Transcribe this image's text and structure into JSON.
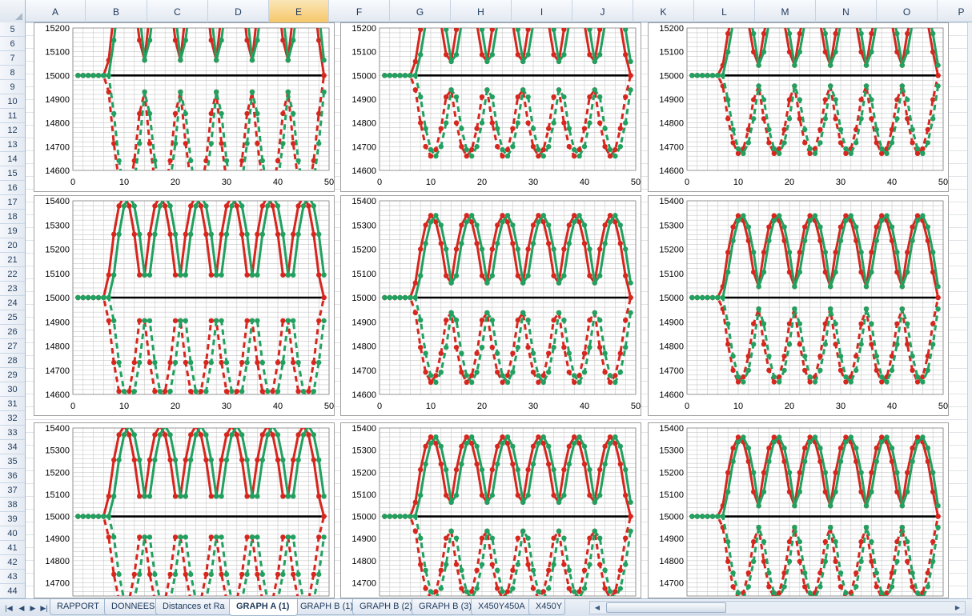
{
  "columns": [
    "A",
    "B",
    "C",
    "D",
    "E",
    "F",
    "G",
    "H",
    "I",
    "J",
    "K",
    "L",
    "M",
    "N",
    "O",
    "P"
  ],
  "selected_column": "E",
  "rows": [
    5,
    6,
    7,
    8,
    9,
    10,
    11,
    12,
    13,
    14,
    15,
    16,
    17,
    18,
    19,
    20,
    21,
    22,
    23,
    24,
    25,
    26,
    27,
    28,
    29,
    30,
    31,
    32,
    33,
    34,
    35,
    36,
    37,
    38,
    39,
    40,
    41,
    42,
    43,
    44
  ],
  "sheet_tabs": [
    "RAPPORT",
    "DONNEES",
    "Distances et Ra",
    "GRAPH A (1)",
    "GRAPH B (1)",
    "GRAPH B (2)",
    "GRAPH B (3)",
    "X450Y450A",
    "X450Y"
  ],
  "active_tab": "GRAPH A (1)",
  "colors": {
    "red": "#d7261e",
    "green": "#22a060",
    "baseline": "#000000",
    "grid": "#c8c8c8"
  },
  "chart_data": [
    {
      "type": "line",
      "xlim": [
        0,
        50
      ],
      "ylim": [
        14600,
        15200
      ],
      "y_ticks": [
        14600,
        14700,
        14800,
        14900,
        15000,
        15100,
        15200
      ],
      "x_ticks": [
        0,
        10,
        20,
        30,
        40,
        50
      ],
      "baseline": 15000,
      "minima": [
        14,
        28,
        42
      ],
      "amp_upper": 480,
      "amp_lower": 520,
      "offset_red": 0.3,
      "offset_green": -0.3
    },
    {
      "type": "line",
      "xlim": [
        0,
        50
      ],
      "ylim": [
        14600,
        15200
      ],
      "y_ticks": [
        14600,
        14700,
        14800,
        14900,
        15000,
        15100,
        15200
      ],
      "x_ticks": [
        0,
        10,
        20,
        30,
        40,
        50
      ],
      "baseline": 15000,
      "minima": [
        14,
        28,
        42
      ],
      "amp_upper": 330,
      "amp_lower": 340,
      "offset_red": 0.4,
      "offset_green": -0.4
    },
    {
      "type": "line",
      "xlim": [
        0,
        50
      ],
      "ylim": [
        14600,
        15200
      ],
      "y_ticks": [
        14600,
        14700,
        14800,
        14900,
        15000,
        15100,
        15200
      ],
      "x_ticks": [
        0,
        10,
        20,
        30,
        40,
        50
      ],
      "baseline": 15000,
      "minima": [
        14,
        28,
        42
      ],
      "amp_upper": 320,
      "amp_lower": 330,
      "offset_red": 0.3,
      "offset_green": -0.3
    },
    {
      "type": "line",
      "xlim": [
        0,
        50
      ],
      "ylim": [
        14600,
        15400
      ],
      "y_ticks": [
        14600,
        14700,
        14800,
        14900,
        15000,
        15100,
        15200,
        15300,
        15400
      ],
      "x_ticks": [
        0,
        10,
        20,
        30,
        40,
        50
      ],
      "baseline": 15000,
      "minima": [
        14,
        28,
        42
      ],
      "amp_upper": 420,
      "amp_lower": 430,
      "offset_red": 0.5,
      "offset_green": -0.5
    },
    {
      "type": "line",
      "xlim": [
        0,
        50
      ],
      "ylim": [
        14600,
        15400
      ],
      "y_ticks": [
        14600,
        14700,
        14800,
        14900,
        15000,
        15100,
        15200,
        15300,
        15400
      ],
      "x_ticks": [
        0,
        10,
        20,
        30,
        40,
        50
      ],
      "baseline": 15000,
      "minima": [
        14,
        28,
        42
      ],
      "amp_upper": 340,
      "amp_lower": 350,
      "offset_red": 0.4,
      "offset_green": -0.4
    },
    {
      "type": "line",
      "xlim": [
        0,
        50
      ],
      "ylim": [
        14600,
        15400
      ],
      "y_ticks": [
        14600,
        14700,
        14800,
        14900,
        15000,
        15100,
        15200,
        15300,
        15400
      ],
      "x_ticks": [
        0,
        10,
        20,
        30,
        40,
        50
      ],
      "baseline": 15000,
      "minima": [
        14,
        28,
        42
      ],
      "amp_upper": 340,
      "amp_lower": 350,
      "offset_red": 0.3,
      "offset_green": -0.3
    },
    {
      "type": "line",
      "xlim": [
        0,
        50
      ],
      "ylim": [
        14640,
        15400
      ],
      "y_ticks": [
        14700,
        14800,
        14900,
        15000,
        15100,
        15200,
        15300,
        15400
      ],
      "x_ticks": [],
      "baseline": 15000,
      "minima": [
        14,
        28,
        42
      ],
      "amp_upper": 410,
      "amp_lower": 420,
      "offset_red": 0.5,
      "offset_green": -0.5
    },
    {
      "type": "line",
      "xlim": [
        0,
        50
      ],
      "ylim": [
        14640,
        15400
      ],
      "y_ticks": [
        14700,
        14800,
        14900,
        15000,
        15100,
        15200,
        15300,
        15400
      ],
      "x_ticks": [],
      "baseline": 15000,
      "minima": [
        14,
        28,
        42
      ],
      "amp_upper": 360,
      "amp_lower": 370,
      "offset_red": 0.4,
      "offset_green": -0.4
    },
    {
      "type": "line",
      "xlim": [
        0,
        50
      ],
      "ylim": [
        14640,
        15400
      ],
      "y_ticks": [
        14700,
        14800,
        14900,
        15000,
        15100,
        15200,
        15300,
        15400
      ],
      "x_ticks": [],
      "baseline": 15000,
      "minima": [
        14,
        28,
        42
      ],
      "amp_upper": 360,
      "amp_lower": 370,
      "offset_red": 0.3,
      "offset_green": -0.3
    }
  ]
}
